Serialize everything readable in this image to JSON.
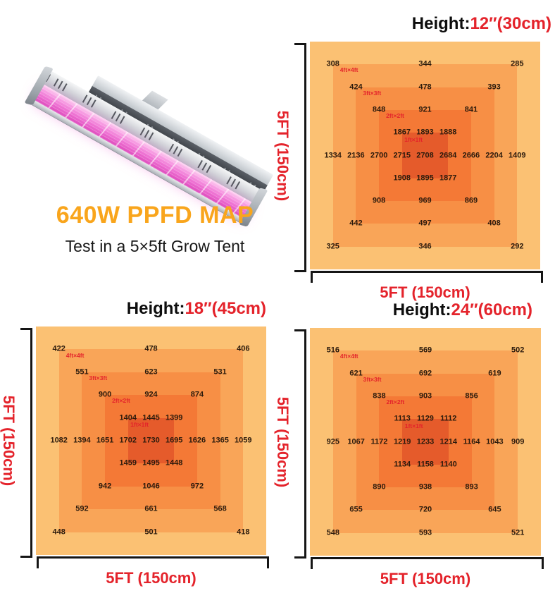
{
  "hero": {
    "headline": "640W PPFD MAP",
    "subheadline": "Test in a 5×5ft Grow Tent",
    "product_image": "dual-bar-led-grow-light"
  },
  "colors": {
    "accent_red": "#E4232B",
    "headline_orange": "#F9A51C",
    "value_text": "#2b1a0c",
    "ring_palette_outer_to_inner": [
      "#FBC173",
      "#F9A558",
      "#F78F45",
      "#F47936",
      "#E55B2B"
    ]
  },
  "chart_data": [
    {
      "type": "heatmap",
      "title_label": "Height:",
      "title_value": "12″(30cm)",
      "xlabel": "5FT (150cm)",
      "ylabel": "5FT (150cm)",
      "ring_labels": [
        "4ft×4ft",
        "3ft×3ft",
        "2ft×2ft",
        "1ft×1ft"
      ],
      "unit": "PPFD (umol/m²/s), implied",
      "rows": [
        {
          "y": 10,
          "xs": [
            10,
            50,
            90
          ],
          "v": [
            308,
            344,
            285
          ]
        },
        {
          "y": 20,
          "xs": [
            20,
            50,
            80
          ],
          "v": [
            424,
            478,
            393
          ]
        },
        {
          "y": 30,
          "xs": [
            30,
            50,
            70
          ],
          "v": [
            848,
            921,
            841
          ]
        },
        {
          "y": 40,
          "xs": [
            40,
            50,
            60
          ],
          "v": [
            1867,
            1893,
            1888
          ]
        },
        {
          "y": 50,
          "xs": [
            10,
            20,
            30,
            40,
            50,
            60,
            70,
            80,
            90
          ],
          "v": [
            1334,
            2136,
            2700,
            2715,
            2708,
            2684,
            2666,
            2204,
            1409
          ]
        },
        {
          "y": 60,
          "xs": [
            40,
            50,
            60
          ],
          "v": [
            1908,
            1895,
            1877
          ]
        },
        {
          "y": 70,
          "xs": [
            30,
            50,
            70
          ],
          "v": [
            908,
            969,
            869
          ]
        },
        {
          "y": 80,
          "xs": [
            20,
            50,
            80
          ],
          "v": [
            442,
            497,
            408
          ]
        },
        {
          "y": 90,
          "xs": [
            10,
            50,
            90
          ],
          "v": [
            325,
            346,
            292
          ]
        }
      ]
    },
    {
      "type": "heatmap",
      "title_label": "Height:",
      "title_value": "18″(45cm)",
      "xlabel": "5FT (150cm)",
      "ylabel": "5FT (150cm)",
      "ring_labels": [
        "4ft×4ft",
        "3ft×3ft",
        "2ft×2ft",
        "1ft×1ft"
      ],
      "rows": [
        {
          "y": 10,
          "xs": [
            10,
            50,
            90
          ],
          "v": [
            422,
            478,
            406
          ]
        },
        {
          "y": 20,
          "xs": [
            20,
            50,
            80
          ],
          "v": [
            551,
            623,
            531
          ]
        },
        {
          "y": 30,
          "xs": [
            30,
            50,
            70
          ],
          "v": [
            900,
            924,
            874
          ]
        },
        {
          "y": 40,
          "xs": [
            40,
            50,
            60
          ],
          "v": [
            1404,
            1445,
            1399
          ]
        },
        {
          "y": 50,
          "xs": [
            10,
            20,
            30,
            40,
            50,
            60,
            70,
            80,
            90
          ],
          "v": [
            1082,
            1394,
            1651,
            1702,
            1730,
            1695,
            1626,
            1365,
            1059
          ]
        },
        {
          "y": 60,
          "xs": [
            40,
            50,
            60
          ],
          "v": [
            1459,
            1495,
            1448
          ]
        },
        {
          "y": 70,
          "xs": [
            30,
            50,
            70
          ],
          "v": [
            942,
            1046,
            972
          ]
        },
        {
          "y": 80,
          "xs": [
            20,
            50,
            80
          ],
          "v": [
            592,
            661,
            568
          ]
        },
        {
          "y": 90,
          "xs": [
            10,
            50,
            90
          ],
          "v": [
            448,
            501,
            418
          ]
        }
      ]
    },
    {
      "type": "heatmap",
      "title_label": "Height:",
      "title_value": "24″(60cm)",
      "xlabel": "5FT (150cm)",
      "ylabel": "5FT (150cm)",
      "ring_labels": [
        "4ft×4ft",
        "3ft×3ft",
        "2ft×2ft",
        "1ft×1ft"
      ],
      "rows": [
        {
          "y": 10,
          "xs": [
            10,
            50,
            90
          ],
          "v": [
            516,
            569,
            502
          ]
        },
        {
          "y": 20,
          "xs": [
            20,
            50,
            80
          ],
          "v": [
            621,
            692,
            619
          ]
        },
        {
          "y": 30,
          "xs": [
            30,
            50,
            70
          ],
          "v": [
            838,
            903,
            856
          ]
        },
        {
          "y": 40,
          "xs": [
            40,
            50,
            60
          ],
          "v": [
            1113,
            1129,
            1112
          ]
        },
        {
          "y": 50,
          "xs": [
            10,
            20,
            30,
            40,
            50,
            60,
            70,
            80,
            90
          ],
          "v": [
            925,
            1067,
            1172,
            1219,
            1233,
            1214,
            1164,
            1043,
            909
          ]
        },
        {
          "y": 60,
          "xs": [
            40,
            50,
            60
          ],
          "v": [
            1134,
            1158,
            1140
          ]
        },
        {
          "y": 70,
          "xs": [
            30,
            50,
            70
          ],
          "v": [
            890,
            938,
            893
          ]
        },
        {
          "y": 80,
          "xs": [
            20,
            50,
            80
          ],
          "v": [
            655,
            720,
            645
          ]
        },
        {
          "y": 90,
          "xs": [
            10,
            50,
            90
          ],
          "v": [
            548,
            593,
            521
          ]
        }
      ]
    }
  ]
}
